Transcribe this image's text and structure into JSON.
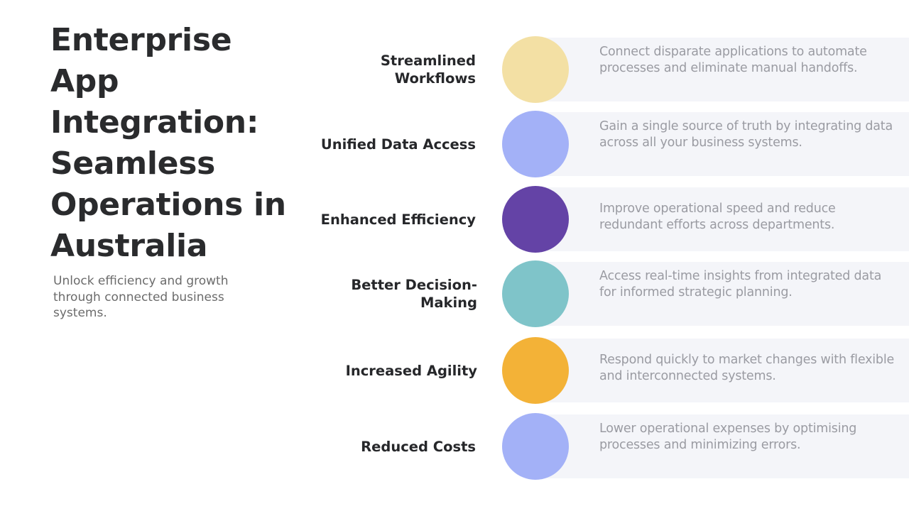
{
  "title": "Enterprise App Integration: Seamless Operations in Australia",
  "subtitle": "Unlock efficiency and growth through connected business systems.",
  "items": [
    {
      "label": "Streamlined Workflows",
      "description": "Connect disparate applications to automate processes and eliminate manual handoffs.",
      "color": "#f3e0a4"
    },
    {
      "label": "Unified Data Access",
      "description": "Gain a single source of truth by integrating data across all your business systems.",
      "color": "#a3b1f7"
    },
    {
      "label": "Enhanced Efficiency",
      "description": "Improve operational speed and reduce redundant efforts across departments.",
      "color": "#6443a6"
    },
    {
      "label": "Better Decision-Making",
      "description": "Access real-time insights from integrated data for informed strategic planning.",
      "color": "#7fc4c9"
    },
    {
      "label": "Increased Agility",
      "description": "Respond quickly to market changes with flexible and interconnected systems.",
      "color": "#f3b237"
    },
    {
      "label": "Reduced Costs",
      "description": "Lower operational expenses by optimising processes and minimizing errors.",
      "color": "#a3b1f7"
    }
  ]
}
